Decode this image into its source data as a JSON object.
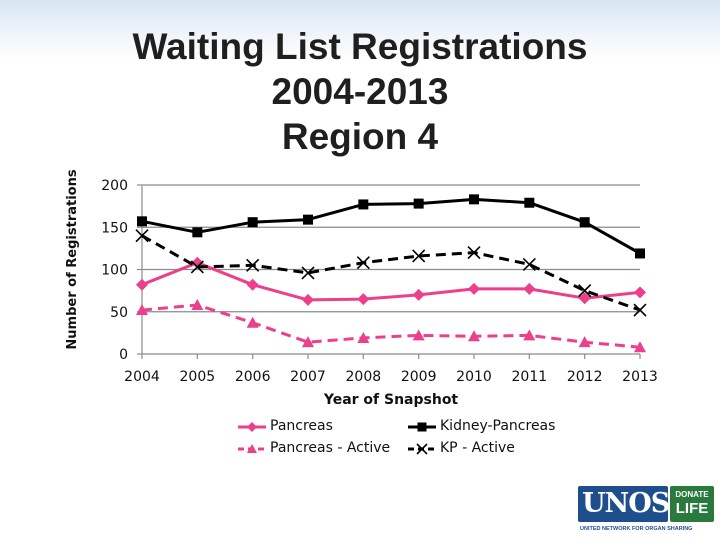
{
  "slide": {
    "title_lines": [
      "Waiting List Registrations",
      "2004-2013",
      "Region 4"
    ]
  },
  "chart_data": {
    "type": "line",
    "title": "Waiting List Registrations 2004-2013 Region 4",
    "xlabel": "Year of Snapshot",
    "ylabel": "Number of Registrations",
    "categories": [
      "2004",
      "2005",
      "2006",
      "2007",
      "2008",
      "2009",
      "2010",
      "2011",
      "2012",
      "2013"
    ],
    "ylim": [
      0,
      200
    ],
    "yticks": [
      0,
      50,
      100,
      150,
      200
    ],
    "grid": true,
    "legend_position": "bottom",
    "series": [
      {
        "name": "Pancreas",
        "marker": "diamond",
        "line": "solid",
        "color": "#ec3f8c",
        "values": [
          82,
          108,
          82,
          64,
          65,
          70,
          77,
          77,
          66,
          73
        ]
      },
      {
        "name": "Kidney-Pancreas",
        "marker": "square",
        "line": "solid",
        "color": "#000000",
        "values": [
          157,
          144,
          156,
          159,
          177,
          178,
          183,
          179,
          156,
          119
        ]
      },
      {
        "name": "Pancreas - Active",
        "marker": "triangle",
        "line": "dashed",
        "color": "#ec3f8c",
        "values": [
          52,
          58,
          37,
          14,
          19,
          22,
          21,
          22,
          14,
          8
        ]
      },
      {
        "name": "KP - Active",
        "marker": "x",
        "line": "dashed",
        "color": "#000000",
        "values": [
          140,
          103,
          105,
          96,
          108,
          116,
          120,
          106,
          75,
          52
        ]
      }
    ]
  },
  "logo": {
    "word": "UNOS",
    "badge_top": "DONATE",
    "badge_bottom": "LIFE",
    "tagline": "UNITED NETWORK FOR ORGAN SHARING"
  }
}
